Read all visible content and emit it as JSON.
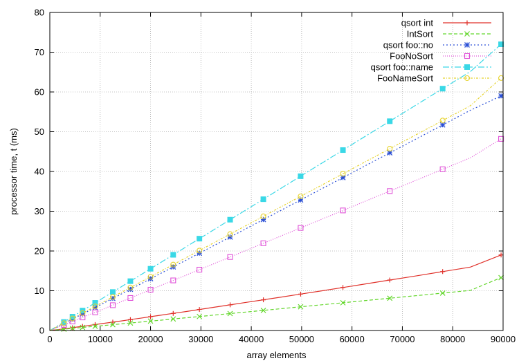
{
  "chart_data": {
    "type": "line",
    "title": "",
    "xlabel": "array elements",
    "ylabel": "processor time, t (ms)",
    "xlim": [
      0,
      90000
    ],
    "ylim": [
      0,
      80
    ],
    "xticks": [
      0,
      10000,
      20000,
      30000,
      40000,
      50000,
      60000,
      70000,
      80000,
      90000
    ],
    "yticks": [
      0,
      10,
      20,
      30,
      40,
      50,
      60,
      70,
      80
    ],
    "grid": true,
    "legend_position": "top-right",
    "x": [
      0,
      500,
      1000,
      1500,
      2000,
      2800,
      3600,
      4500,
      5500,
      6500,
      7800,
      9000,
      10500,
      12500,
      14500,
      16000,
      18000,
      20000,
      22000,
      24500,
      27000,
      29700,
      32600,
      35800,
      39000,
      42400,
      46000,
      49800,
      54000,
      58200,
      62800,
      67500,
      72600,
      78000,
      83500,
      89600
    ],
    "series": [
      {
        "name": "qsort int",
        "color": "#e0312a",
        "dash": "",
        "marker": "plus",
        "values": [
          0,
          0.1,
          0.15,
          0.22,
          0.3,
          0.42,
          0.56,
          0.7,
          0.88,
          1.05,
          1.27,
          1.5,
          1.76,
          2.1,
          2.46,
          2.74,
          3.1,
          3.48,
          3.85,
          4.31,
          4.77,
          5.29,
          5.84,
          6.45,
          7.07,
          7.72,
          8.42,
          9.16,
          9.99,
          10.82,
          11.74,
          12.69,
          13.71,
          14.82,
          15.94,
          19.0
        ]
      },
      {
        "name": "IntSort",
        "color": "#62d62a",
        "dash": "5,3",
        "marker": "x",
        "values": [
          0,
          0.07,
          0.13,
          0.18,
          0.24,
          0.33,
          0.43,
          0.54,
          0.65,
          0.77,
          0.92,
          1.06,
          1.23,
          1.46,
          1.7,
          1.88,
          2.12,
          2.36,
          2.6,
          2.9,
          3.2,
          3.52,
          3.87,
          4.26,
          4.65,
          5.06,
          5.5,
          5.96,
          6.47,
          6.98,
          7.54,
          8.12,
          8.74,
          9.41,
          10.08,
          13.3
        ]
      },
      {
        "name": "qsort foo::no",
        "color": "#2a4fd6",
        "dash": "2,3",
        "marker": "star",
        "values": [
          0,
          0.3,
          0.62,
          0.94,
          1.26,
          1.78,
          2.3,
          2.88,
          3.52,
          4.16,
          5.0,
          5.78,
          6.75,
          8.07,
          9.38,
          10.37,
          11.69,
          13.02,
          14.34,
          15.99,
          17.65,
          19.44,
          21.37,
          23.5,
          25.63,
          27.9,
          30.3,
          32.84,
          35.65,
          38.46,
          41.54,
          44.68,
          48.09,
          51.71,
          55.39,
          59.0
        ]
      },
      {
        "name": "FooNoSort",
        "color": "#e052d8",
        "dash": "1,2",
        "marker": "square",
        "values": [
          0,
          0.24,
          0.49,
          0.74,
          0.99,
          1.4,
          1.81,
          2.27,
          2.78,
          3.29,
          3.95,
          4.56,
          5.33,
          6.36,
          7.4,
          8.18,
          9.22,
          10.26,
          11.3,
          12.6,
          13.9,
          15.3,
          16.82,
          18.49,
          20.16,
          21.94,
          23.82,
          25.81,
          28.0,
          30.2,
          32.61,
          35.07,
          37.73,
          40.56,
          43.43,
          48.2
        ]
      },
      {
        "name": "qsort foo::name",
        "color": "#3ad8e6",
        "dash": "9,3,2,3",
        "marker": "filled-square",
        "values": [
          0,
          0.37,
          0.75,
          1.13,
          1.52,
          2.14,
          2.77,
          3.47,
          4.24,
          5.01,
          6.01,
          6.95,
          8.12,
          9.68,
          11.23,
          12.41,
          13.97,
          15.53,
          17.09,
          19.04,
          20.99,
          23.1,
          25.37,
          27.87,
          30.37,
          33.02,
          35.84,
          38.81,
          42.09,
          45.38,
          48.97,
          52.64,
          56.62,
          60.83,
          65.13,
          72.0
        ]
      },
      {
        "name": "FooNameSort",
        "color": "#e6d32e",
        "dash": "3,2,1,2",
        "marker": "circle",
        "values": [
          0,
          0.33,
          0.66,
          0.99,
          1.33,
          1.87,
          2.42,
          3.03,
          3.7,
          4.38,
          5.25,
          6.07,
          7.08,
          8.44,
          9.79,
          10.81,
          12.17,
          13.52,
          14.88,
          16.58,
          18.27,
          20.1,
          22.08,
          24.25,
          26.42,
          28.72,
          31.16,
          33.74,
          36.58,
          39.43,
          42.54,
          45.72,
          49.17,
          52.82,
          56.54,
          63.5
        ]
      }
    ]
  }
}
